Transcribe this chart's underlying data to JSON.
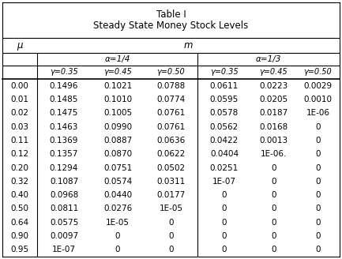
{
  "title_line1": "Table I",
  "title_line2": "Steady State Money Stock Levels",
  "col_header_mu": "μ",
  "col_header_m": "m",
  "alpha_14": "α=1/4",
  "alpha_13": "α=1/3",
  "gamma_labels": [
    "γ=0.35",
    "γ=0.45",
    "γ=0.50",
    "γ=0.35",
    "γ=0.45",
    "γ=0.50"
  ],
  "mu_values": [
    "0.00",
    "0.01",
    "0.02",
    "0.03",
    "0.11",
    "0.12",
    "0.20",
    "0.32",
    "0.40",
    "0.50",
    "0.64",
    "0.90",
    "0.95"
  ],
  "table_data": [
    [
      "0.1496",
      "0.1021",
      "0.0788",
      "0.0611",
      "0.0223",
      "0.0029"
    ],
    [
      "0.1485",
      "0.1010",
      "0.0774",
      "0.0595",
      "0.0205",
      "0.0010"
    ],
    [
      "0.1475",
      "0.1005",
      "0.0761",
      "0.0578",
      "0.0187",
      "1E-06"
    ],
    [
      "0.1463",
      "0.0990",
      "0.0761",
      "0.0562",
      "0.0168",
      "0"
    ],
    [
      "0.1369",
      "0.0887",
      "0.0636",
      "0.0422",
      "0.0013",
      "0"
    ],
    [
      "0.1357",
      "0.0870",
      "0.0622",
      "0.0404",
      "1E-06.",
      "0"
    ],
    [
      "0.1294",
      "0.0751",
      "0.0502",
      "0.0251",
      "0",
      "0"
    ],
    [
      "0.1087",
      "0.0574",
      "0.0311",
      "1E-07",
      "0",
      "0"
    ],
    [
      "0.0968",
      "0.0440",
      "0.0177",
      "0",
      "0",
      "0"
    ],
    [
      "0.0811",
      "0.0276",
      "1E-05",
      "0",
      "0",
      "0"
    ],
    [
      "0.0575",
      "1E-05",
      "0",
      "0",
      "0",
      "0"
    ],
    [
      "0.0097",
      "0",
      "0",
      "0",
      "0",
      "0"
    ],
    [
      "1E-07",
      "0",
      "0",
      "0",
      "0",
      "0"
    ]
  ],
  "bg_color": "#ffffff",
  "text_color": "#000000",
  "figsize": [
    4.33,
    3.28
  ],
  "dpi": 100
}
